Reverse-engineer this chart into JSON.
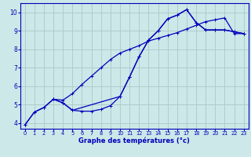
{
  "xlabel": "Graphe des températures (°c)",
  "bg_color": "#cce8e8",
  "grid_color": "#aacaca",
  "line_color": "#0000bb",
  "xlim": [
    -0.5,
    23.5
  ],
  "ylim": [
    3.7,
    10.5
  ],
  "xticks": [
    0,
    1,
    2,
    3,
    4,
    5,
    6,
    7,
    8,
    9,
    10,
    11,
    12,
    13,
    14,
    15,
    16,
    17,
    18,
    19,
    20,
    21,
    22,
    23
  ],
  "yticks": [
    4,
    5,
    6,
    7,
    8,
    9,
    10
  ],
  "line1_x": [
    0,
    1,
    2,
    3,
    4,
    5,
    6,
    7,
    8,
    9,
    10,
    11,
    12,
    13,
    14,
    15,
    16,
    17,
    18,
    19,
    20,
    21,
    22,
    23
  ],
  "line1_y": [
    3.9,
    4.6,
    4.85,
    5.3,
    5.1,
    4.7,
    4.65,
    4.65,
    4.75,
    4.95,
    5.45,
    6.5,
    7.6,
    8.5,
    9.0,
    9.65,
    9.85,
    10.15,
    9.45,
    9.05,
    9.05,
    9.05,
    8.95,
    8.85
  ],
  "line2_x": [
    0,
    1,
    2,
    3,
    4,
    5,
    6,
    7,
    8,
    9,
    10,
    11,
    12,
    13,
    14,
    15,
    16,
    17,
    18,
    19,
    20,
    21,
    22,
    23
  ],
  "line2_y": [
    3.9,
    4.6,
    4.85,
    5.3,
    5.25,
    5.6,
    6.1,
    6.55,
    7.0,
    7.45,
    7.8,
    8.0,
    8.2,
    8.45,
    8.6,
    8.75,
    8.9,
    9.1,
    9.3,
    9.5,
    9.6,
    9.7,
    8.85,
    8.85
  ],
  "line3_x": [
    3,
    4,
    5,
    10,
    11,
    12,
    13,
    14,
    15,
    16,
    17,
    18,
    19,
    20,
    21,
    22,
    23
  ],
  "line3_y": [
    5.3,
    5.1,
    4.7,
    5.45,
    6.5,
    7.6,
    8.5,
    9.0,
    9.65,
    9.85,
    10.15,
    9.45,
    9.05,
    9.05,
    9.05,
    8.95,
    8.85
  ]
}
